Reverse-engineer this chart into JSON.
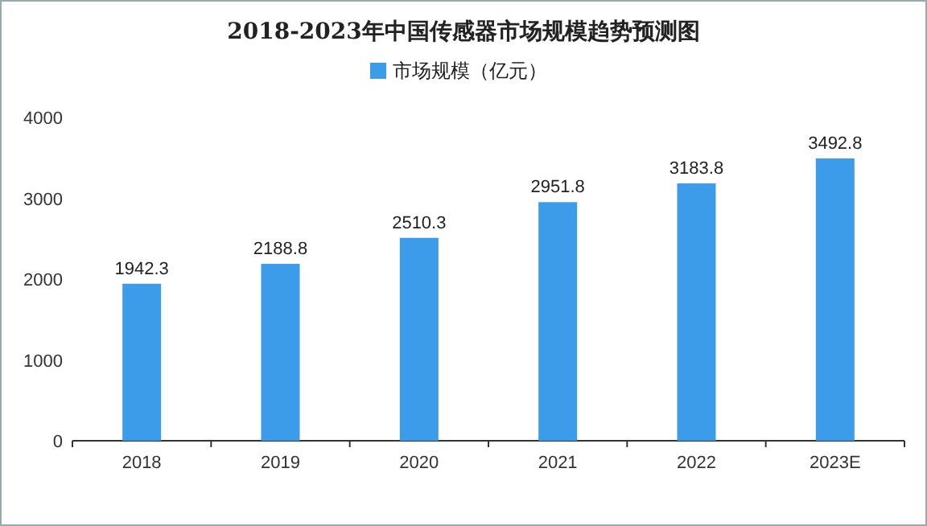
{
  "chart_data": {
    "type": "bar",
    "title": "2018-2023年中国传感器市场规模趋势预测图",
    "categories": [
      "2018",
      "2019",
      "2020",
      "2021",
      "2022",
      "2023E"
    ],
    "series": [
      {
        "name": "市场规模（亿元）",
        "color": "#3d9cea",
        "values": [
          1942.3,
          2188.8,
          2510.3,
          2951.8,
          3183.8,
          3492.8
        ]
      }
    ],
    "ylim": [
      0,
      4000
    ],
    "yticks": [
      0,
      1000,
      2000,
      3000,
      4000
    ],
    "data_labels": true,
    "legend": "top"
  }
}
